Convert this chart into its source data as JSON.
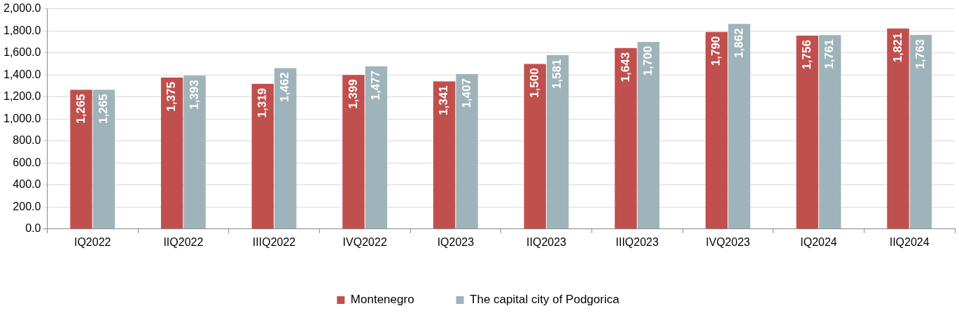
{
  "chart_data": {
    "type": "bar",
    "categories": [
      "IQ2022",
      "IIQ2022",
      "IIIQ2022",
      "IVQ2022",
      "IQ2023",
      "IIQ2023",
      "IIIQ2023",
      "IVQ2023",
      "IQ2024",
      "IIQ2024"
    ],
    "series": [
      {
        "name": "Montenegro",
        "color": "#c0504d",
        "values": [
          1265,
          1375,
          1319,
          1399,
          1341,
          1500,
          1643,
          1790,
          1756,
          1821
        ],
        "value_labels": [
          "1,265",
          "1,375",
          "1,319",
          "1,399",
          "1,341",
          "1,500",
          "1,643",
          "1,790",
          "1,756",
          "1,821"
        ]
      },
      {
        "name": "The capital city of Podgorica",
        "color": "#9fb3ba",
        "values": [
          1265,
          1393,
          1462,
          1477,
          1407,
          1581,
          1700,
          1862,
          1761,
          1763
        ],
        "value_labels": [
          "1,265",
          "1,393",
          "1,462",
          "1,477",
          "1,407",
          "1,581",
          "1,700",
          "1,862",
          "1,761",
          "1,763"
        ]
      }
    ],
    "ylim": [
      0,
      2000
    ],
    "yticks": [
      {
        "value": 0,
        "label": "0.0"
      },
      {
        "value": 200,
        "label": "200.0"
      },
      {
        "value": 400,
        "label": "400.0"
      },
      {
        "value": 600,
        "label": "600.0"
      },
      {
        "value": 800,
        "label": "800.0"
      },
      {
        "value": 1000,
        "label": "1,000.0"
      },
      {
        "value": 1200,
        "label": "1,200.0"
      },
      {
        "value": 1400,
        "label": "1,400.0"
      },
      {
        "value": 1600,
        "label": "1,600.0"
      },
      {
        "value": 1800,
        "label": "1,800.0"
      },
      {
        "value": 2000,
        "label": "2,000.0"
      }
    ],
    "grid": "y",
    "legend": "bottom"
  }
}
